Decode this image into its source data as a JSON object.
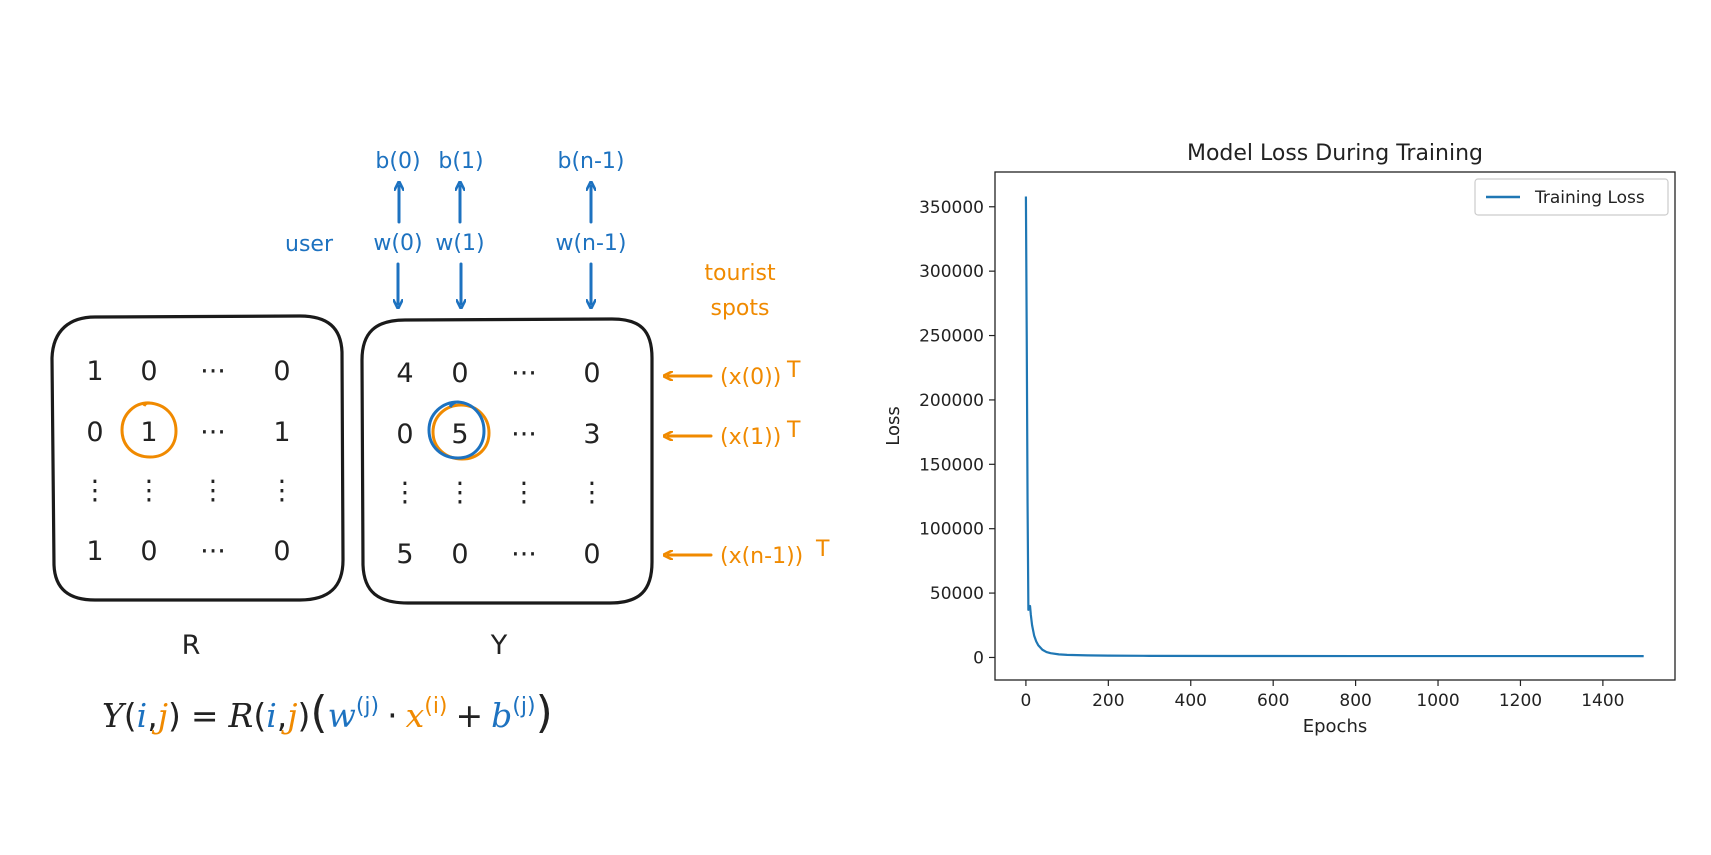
{
  "diagram": {
    "top_labels": [
      "b(0)",
      "b(1)",
      "b(n-1)"
    ],
    "mid_labels": [
      "w(0)",
      "w(1)",
      "w(n-1)"
    ],
    "user_label": "user",
    "tourist_label_line1": "tourist",
    "tourist_label_line2": "spots",
    "matrix_R": [
      [
        "1",
        "0",
        "···",
        "0"
      ],
      [
        "0",
        "1",
        "···",
        "1"
      ],
      [
        "⋮",
        "⋮",
        "⋮",
        "⋮"
      ],
      [
        "1",
        "0",
        "···",
        "0"
      ]
    ],
    "matrix_Y": [
      [
        "4",
        "0",
        "···",
        "0"
      ],
      [
        "0",
        "5",
        "···",
        "3"
      ],
      [
        "⋮",
        "⋮",
        "⋮",
        "⋮"
      ],
      [
        "5",
        "0",
        "···",
        "0"
      ]
    ],
    "R_name": "R",
    "Y_name": "Y",
    "row_labels": [
      "(x(0))",
      "(x(1))",
      "(x(n-1))"
    ],
    "transpose_mark": "T",
    "formula": {
      "Y": "Y",
      "lp": "(",
      "i": "i",
      "comma": ",",
      "j": "j",
      "rp": ")",
      "eq": "=",
      "R": "R",
      "big_lp": "(",
      "w": "w",
      "w_sup": "(j)",
      "dot": "·",
      "x": "x",
      "x_sup": "(i)",
      "plus": "+",
      "b": "b",
      "b_sup": "(j)",
      "big_rp": ")"
    },
    "colors": {
      "blue": "#1d72c0",
      "orange": "#f08a00",
      "ink": "#222222"
    }
  },
  "chart_data": {
    "type": "line",
    "title": "Model Loss During Training",
    "xlabel": "Epochs",
    "ylabel": "Loss",
    "xlim": [
      -75,
      1575
    ],
    "ylim": [
      -17500,
      377000
    ],
    "xticks": [
      0,
      200,
      400,
      600,
      800,
      1000,
      1200,
      1400
    ],
    "yticks": [
      0,
      50000,
      100000,
      150000,
      200000,
      250000,
      300000,
      350000
    ],
    "legend_position": "top-right",
    "grid": false,
    "series": [
      {
        "name": "Training Loss",
        "color": "#1f77b4",
        "x": [
          0,
          2,
          4,
          6,
          8,
          10,
          12,
          15,
          20,
          25,
          30,
          40,
          50,
          60,
          80,
          100,
          150,
          200,
          300,
          500,
          800,
          1100,
          1499
        ],
        "y": [
          358000,
          250000,
          120000,
          37000,
          38500,
          40000,
          33000,
          25000,
          17000,
          12500,
          9500,
          6000,
          4200,
          3300,
          2400,
          2000,
          1600,
          1400,
          1250,
          1150,
          1100,
          1080,
          1050
        ]
      }
    ]
  }
}
